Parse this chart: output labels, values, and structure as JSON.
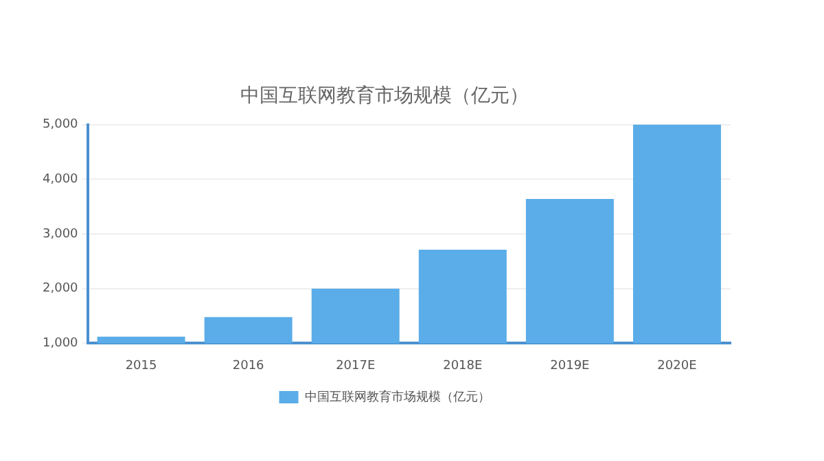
{
  "chart_data": {
    "type": "bar",
    "title": "中国互联网教育市场规模（亿元）",
    "categories": [
      "2015",
      "2016",
      "2017E",
      "2018E",
      "2019E",
      "2020E"
    ],
    "series": [
      {
        "name": "中国互联网教育市场规模（亿元）",
        "color": "#5aade8",
        "values": [
          1120,
          1480,
          2000,
          2710,
          3640,
          5000
        ]
      }
    ],
    "ylim": [
      1000,
      5000
    ],
    "yticks": [
      {
        "value": 1000,
        "label": "1,000"
      },
      {
        "value": 2000,
        "label": "2,000"
      },
      {
        "value": 3000,
        "label": "3,000"
      },
      {
        "value": 4000,
        "label": "4,000"
      },
      {
        "value": 5000,
        "label": "5,000"
      }
    ],
    "grid": "y",
    "legend": "bottom"
  }
}
